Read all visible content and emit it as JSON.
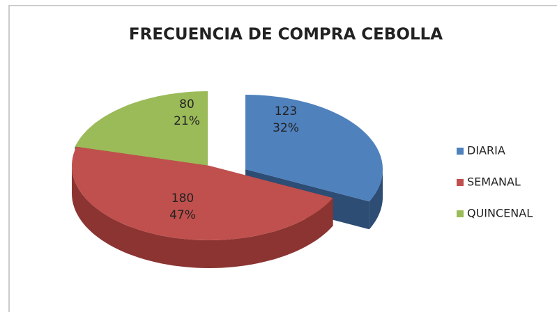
{
  "chart_data": {
    "type": "pie3d",
    "title": "FRECUENCIA DE COMPRA CEBOLLA",
    "categories": [
      "DIARIA",
      "SEMANAL",
      "QUINCENAL"
    ],
    "values": [
      123,
      180,
      80
    ],
    "percent_labels": [
      "32%",
      "47%",
      "21%"
    ],
    "colors": [
      "#4f81bd",
      "#c0504d",
      "#9bbb59"
    ],
    "side_colors": [
      "#2d4d74",
      "#8b3432",
      "#55692b"
    ],
    "legend": "right"
  }
}
